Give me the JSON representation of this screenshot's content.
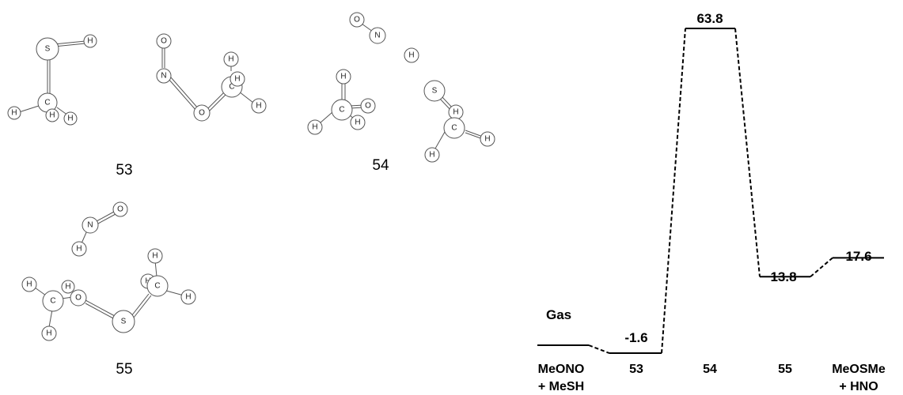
{
  "structures": [
    {
      "id": "s53",
      "label": "53"
    },
    {
      "id": "s54",
      "label": "54"
    },
    {
      "id": "s55",
      "label": "55"
    }
  ],
  "energy_diagram": {
    "phase_label": "Gas",
    "states": [
      {
        "key": "react",
        "label_line1": "MeONO",
        "label_line2": "+ MeSH",
        "energy": 0.0,
        "energy_label": ""
      },
      {
        "key": "c53",
        "label_line1": "53",
        "label_line2": "",
        "energy": -1.6,
        "energy_label": "-1.6"
      },
      {
        "key": "ts54",
        "label_line1": "54",
        "label_line2": "",
        "energy": 63.8,
        "energy_label": "63.8"
      },
      {
        "key": "c55",
        "label_line1": "55",
        "label_line2": "",
        "energy": 13.8,
        "energy_label": "13.8"
      },
      {
        "key": "prod",
        "label_line1": "MeOSMe",
        "label_line2": "+ HNO",
        "energy": 17.6,
        "energy_label": "17.6"
      }
    ]
  }
}
